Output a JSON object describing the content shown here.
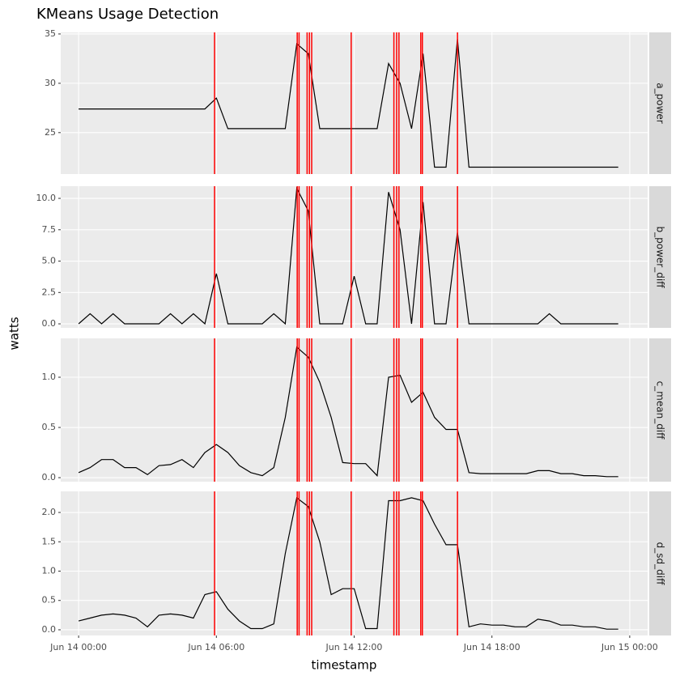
{
  "chart_data": {
    "type": "line",
    "title": "KMeans Usage Detection",
    "x_label": "timestamp",
    "y_label": "watts",
    "color": "#000000",
    "event_color": "#ff0000",
    "grid": true,
    "xlim": [
      -0.78,
      24.78
    ],
    "xticks": [
      {
        "value": 0,
        "label": "Jun 14 00:00"
      },
      {
        "value": 6,
        "label": "Jun 14 06:00"
      },
      {
        "value": 12,
        "label": "Jun 14 12:00"
      },
      {
        "value": 18,
        "label": "Jun 14 18:00"
      },
      {
        "value": 24,
        "label": "Jun 15 00:00"
      }
    ],
    "x": [
      0,
      0.5,
      1,
      1.5,
      2,
      2.5,
      3,
      3.5,
      4,
      4.5,
      5,
      5.5,
      6,
      6.5,
      7,
      7.5,
      8,
      8.5,
      9,
      9.5,
      10,
      10.5,
      11,
      11.5,
      12,
      12.5,
      13,
      13.5,
      14,
      14.5,
      15,
      15.5,
      16,
      16.5,
      17,
      17.5,
      18,
      18.5,
      19,
      19.5,
      20,
      20.5,
      21,
      21.5,
      22,
      22.5,
      23,
      23.5
    ],
    "events": [
      5.92,
      9.52,
      9.6,
      9.95,
      10.05,
      10.15,
      11.87,
      13.73,
      13.85,
      13.95,
      14.9,
      14.97,
      16.5
    ],
    "facets": [
      {
        "name": "a_power",
        "ylim": [
          20.8,
          35.16
        ],
        "yticks": [
          25,
          30,
          35
        ],
        "values": [
          27.4,
          27.4,
          27.4,
          27.4,
          27.4,
          27.4,
          27.4,
          27.4,
          27.4,
          27.4,
          27.4,
          27.4,
          28.5,
          25.4,
          25.4,
          25.4,
          25.4,
          25.4,
          25.4,
          34,
          33,
          25.4,
          25.4,
          25.4,
          25.4,
          25.4,
          25.4,
          32,
          30,
          25.4,
          33,
          21.5,
          21.5,
          34.5,
          21.5,
          21.5,
          21.5,
          21.5,
          21.5,
          21.5,
          21.5,
          21.5,
          21.5,
          21.5,
          21.5,
          21.5,
          21.5,
          21.5
        ]
      },
      {
        "name": "b_power_diff",
        "ylim": [
          -0.32,
          10.97
        ],
        "yticks": [
          {
            "value": 0,
            "label": "0.0"
          },
          2.5,
          {
            "value": 5,
            "label": "5.0"
          },
          7.5,
          {
            "value": 10,
            "label": "10.0"
          }
        ],
        "values": [
          0,
          0.8,
          0,
          0.8,
          0,
          0,
          0,
          0,
          0.8,
          0,
          0.8,
          0,
          4,
          0,
          0,
          0,
          0,
          0.8,
          0,
          10.8,
          9,
          0,
          0,
          0,
          3.8,
          0,
          0,
          10.5,
          7.5,
          0,
          9.7,
          0,
          0,
          7.3,
          0,
          0,
          0,
          0,
          0,
          0,
          0,
          0.8,
          0,
          0,
          0,
          0,
          0,
          0
        ]
      },
      {
        "name": "c_mean_diff",
        "ylim": [
          -0.04,
          1.387
        ],
        "yticks": [
          {
            "value": 0,
            "label": "0.0"
          },
          0.5,
          {
            "value": 1,
            "label": "1.0"
          }
        ],
        "values": [
          0.05,
          0.1,
          0.18,
          0.18,
          0.1,
          0.1,
          0.03,
          0.12,
          0.13,
          0.18,
          0.1,
          0.25,
          0.33,
          0.25,
          0.12,
          0.05,
          0.02,
          0.1,
          0.6,
          1.3,
          1.2,
          0.95,
          0.6,
          0.15,
          0.14,
          0.14,
          0.02,
          1.0,
          1.02,
          0.75,
          0.85,
          0.6,
          0.48,
          0.48,
          0.05,
          0.04,
          0.04,
          0.04,
          0.04,
          0.04,
          0.07,
          0.07,
          0.04,
          0.04,
          0.02,
          0.02,
          0.01,
          0.01
        ]
      },
      {
        "name": "d_sd_diff",
        "ylim": [
          -0.097,
          2.359
        ],
        "yticks": [
          {
            "value": 0,
            "label": "0.0"
          },
          0.5,
          {
            "value": 1,
            "label": "1.0"
          },
          1.5,
          {
            "value": 2,
            "label": "2.0"
          }
        ],
        "values": [
          0.15,
          0.2,
          0.25,
          0.27,
          0.25,
          0.2,
          0.05,
          0.25,
          0.27,
          0.25,
          0.2,
          0.6,
          0.65,
          0.35,
          0.15,
          0.02,
          0.02,
          0.1,
          1.3,
          2.25,
          2.1,
          1.5,
          0.6,
          0.7,
          0.7,
          0.02,
          0.02,
          2.2,
          2.2,
          2.25,
          2.2,
          1.8,
          1.45,
          1.45,
          0.05,
          0.1,
          0.08,
          0.08,
          0.05,
          0.05,
          0.18,
          0.15,
          0.08,
          0.08,
          0.05,
          0.05,
          0.01,
          0.01
        ]
      }
    ]
  }
}
